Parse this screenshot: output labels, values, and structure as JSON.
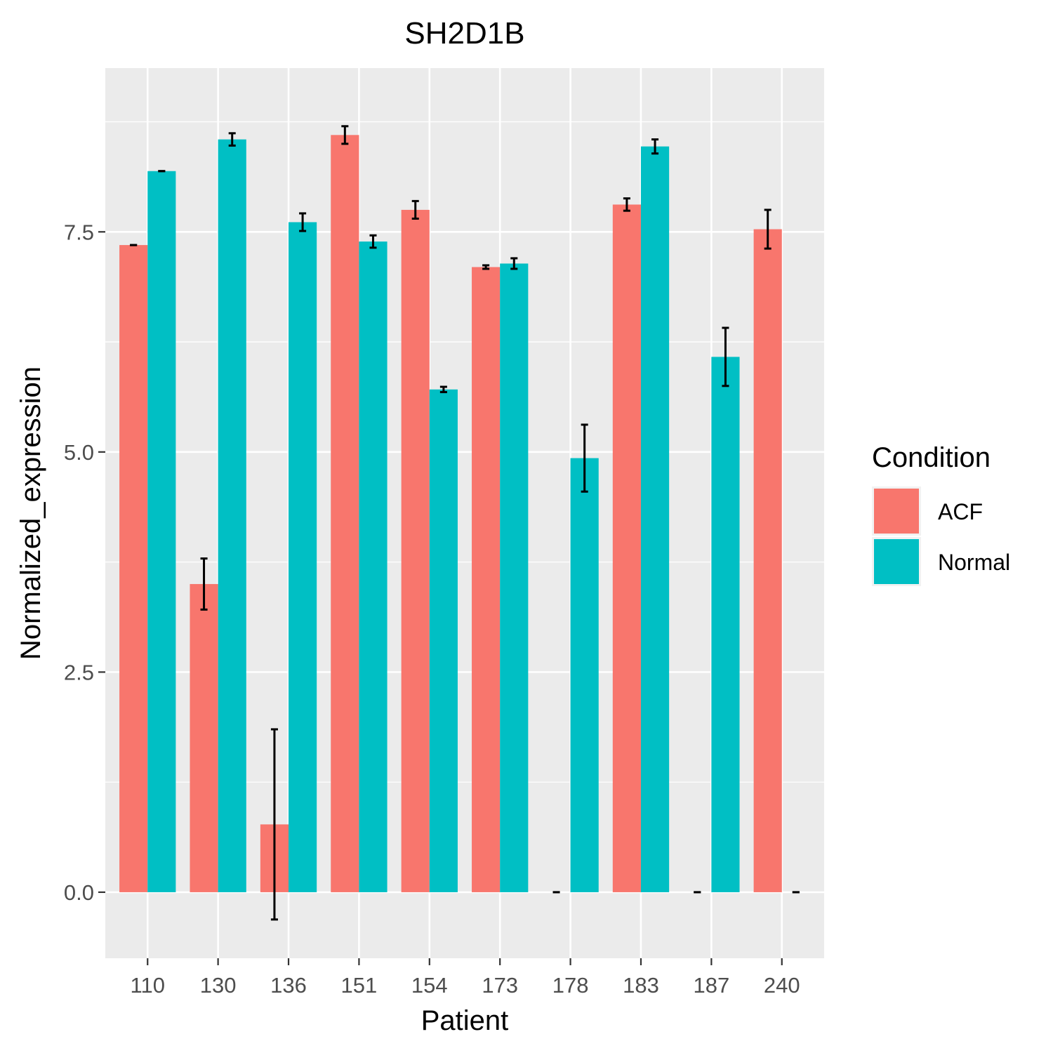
{
  "chart_data": {
    "type": "bar",
    "title": "SH2D1B",
    "xlabel": "Patient",
    "ylabel": "Normalized_expression",
    "categories": [
      "110",
      "130",
      "136",
      "151",
      "154",
      "173",
      "178",
      "183",
      "187",
      "240"
    ],
    "yticks": [
      0.0,
      2.5,
      5.0,
      7.5
    ],
    "ytick_labels": [
      "0.0",
      "2.5",
      "5.0",
      "7.5"
    ],
    "ylim": [
      -0.75,
      9.36
    ],
    "grid": true,
    "legend": {
      "title": "Condition",
      "position": "right"
    },
    "series": [
      {
        "name": "ACF",
        "color": "#F8766D",
        "values": [
          7.35,
          3.5,
          0.77,
          8.6,
          7.75,
          7.1,
          0.0,
          7.81,
          0.0,
          7.53
        ],
        "errors": [
          0.0,
          0.29,
          1.08,
          0.1,
          0.1,
          0.02,
          0.0,
          0.07,
          0.0,
          0.22
        ]
      },
      {
        "name": "Normal",
        "color": "#00BFC4",
        "values": [
          8.19,
          8.55,
          7.61,
          7.39,
          5.71,
          7.14,
          4.93,
          8.47,
          6.08,
          0.0
        ],
        "errors": [
          0.0,
          0.07,
          0.1,
          0.07,
          0.03,
          0.06,
          0.38,
          0.08,
          0.33,
          0.0
        ]
      }
    ]
  }
}
